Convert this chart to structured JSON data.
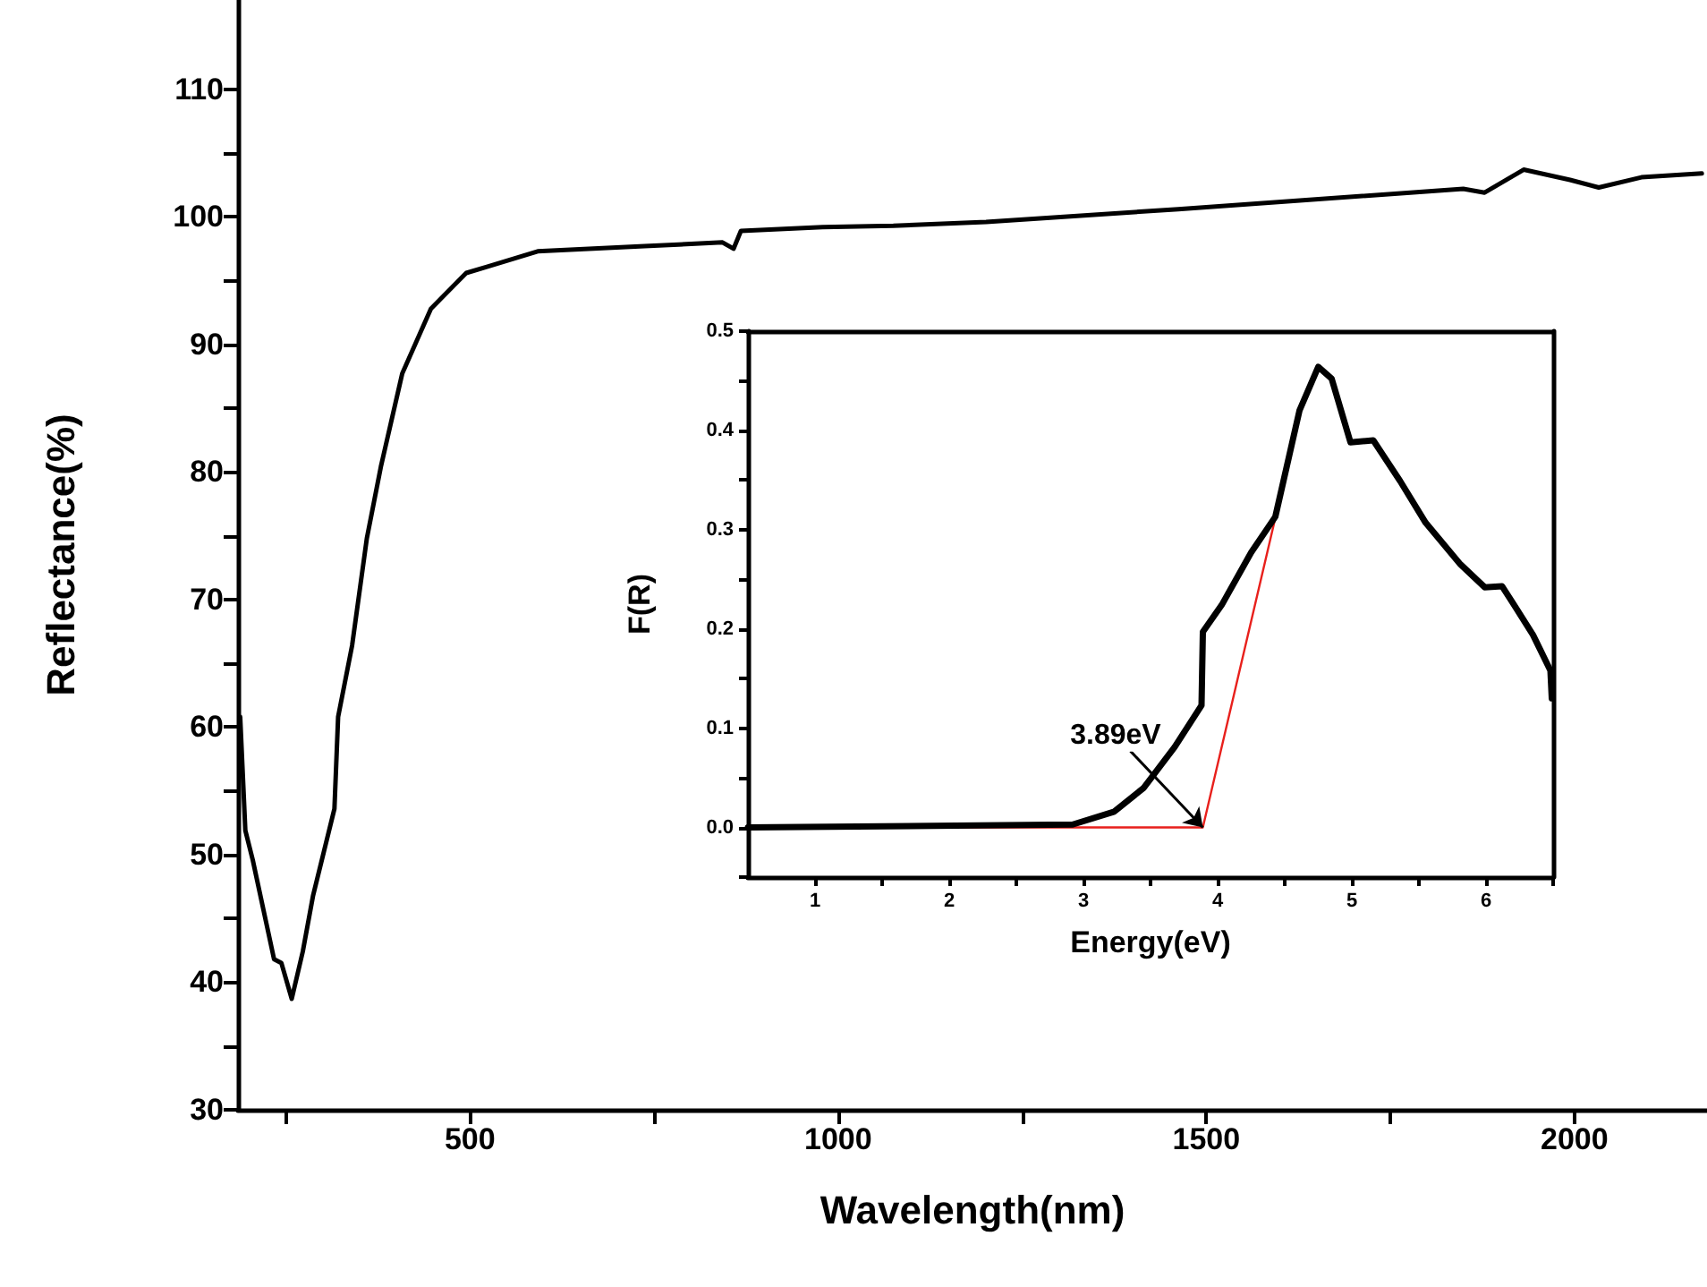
{
  "chart_data": [
    {
      "type": "line",
      "xlabel": "Wavelength(nm)",
      "ylabel": "Reflectance(%)",
      "marker": "none",
      "grid": false,
      "xlim": [
        185,
        2180
      ],
      "ylim": [
        30,
        117
      ],
      "xticks": [
        {
          "value": 250,
          "label": null
        },
        500,
        {
          "value": 750,
          "label": null
        },
        1000,
        {
          "value": 1250,
          "label": null
        },
        1500,
        {
          "value": 1750,
          "label": null
        },
        2000
      ],
      "yticks": [
        30,
        {
          "value": 35,
          "label": null
        },
        40,
        {
          "value": 45,
          "label": null
        },
        50,
        {
          "value": 55,
          "label": null
        },
        60,
        {
          "value": 65,
          "label": null
        },
        70,
        {
          "value": 75,
          "label": null
        },
        80,
        {
          "value": 85,
          "label": null
        },
        90,
        {
          "value": 95,
          "label": null
        },
        100,
        {
          "value": 105,
          "label": null
        },
        110
      ],
      "x": [
        188,
        195,
        205,
        234,
        244,
        258,
        273,
        287,
        316,
        321,
        340,
        360,
        379,
        408,
        447,
        495,
        524,
        592,
        737,
        843,
        858,
        868,
        979,
        1075,
        1201,
        1462,
        1849,
        1878,
        1931,
        1994,
        2033,
        2091,
        2173
      ],
      "series": [
        {
          "color": "#000000",
          "values": [
            60.8,
            51.9,
            49.6,
            41.8,
            41.5,
            38.7,
            42.4,
            46.8,
            53.6,
            60.8,
            66.4,
            74.8,
            80.4,
            87.7,
            92.8,
            95.6,
            96.1,
            97.3,
            97.7,
            98.0,
            97.5,
            98.9,
            99.2,
            99.3,
            99.6,
            100.6,
            102.2,
            101.9,
            103.7,
            102.9,
            102.3,
            103.1,
            103.4
          ]
        }
      ]
    },
    {
      "type": "line",
      "xlabel": "Energy(eV)",
      "ylabel": "F(R)",
      "marker": "none",
      "grid": false,
      "xlim": [
        0.5,
        6.5
      ],
      "ylim": [
        -0.05,
        0.5
      ],
      "xticks": [
        1,
        {
          "value": 1.5,
          "label": null
        },
        2,
        {
          "value": 2.5,
          "label": null
        },
        3,
        {
          "value": 3.5,
          "label": null
        },
        4,
        {
          "value": 4.5,
          "label": null
        },
        5,
        {
          "value": 5.5,
          "label": null
        },
        6,
        {
          "value": 6.5,
          "label": null
        }
      ],
      "yticks": [
        {
          "value": -0.05,
          "label": null
        },
        {
          "value": 0,
          "label": "0.0"
        },
        {
          "value": 0.05,
          "label": null
        },
        0.1,
        {
          "value": 0.15,
          "label": null
        },
        0.2,
        {
          "value": 0.25,
          "label": null
        },
        0.3,
        {
          "value": 0.35,
          "label": null
        },
        0.4,
        {
          "value": 0.45,
          "label": null
        },
        0.5
      ],
      "x": [
        0.5,
        2.92,
        3.23,
        3.45,
        3.68,
        3.88,
        3.89,
        4.03,
        4.25,
        4.43,
        4.61,
        4.75,
        4.85,
        4.99,
        5.16,
        5.36,
        5.55,
        5.81,
        5.99,
        6.12,
        6.21,
        6.35,
        6.48,
        6.49
      ],
      "series": [
        {
          "color": "#000000",
          "values": [
            0,
            0.003,
            0.016,
            0.04,
            0.081,
            0.123,
            0.197,
            0.224,
            0.277,
            0.313,
            0.42,
            0.464,
            0.452,
            0.388,
            0.39,
            0.349,
            0.307,
            0.265,
            0.242,
            0.243,
            0.224,
            0.194,
            0.158,
            0.13
          ]
        },
        {
          "type": "line",
          "color": "#e8201c",
          "x": [
            1.95,
            3.89,
            4.6
          ],
          "values": [
            0,
            0,
            0.41
          ]
        }
      ],
      "annotations": [
        {
          "text": "3.89eV",
          "x": 3.89,
          "y": 0
        }
      ]
    }
  ]
}
